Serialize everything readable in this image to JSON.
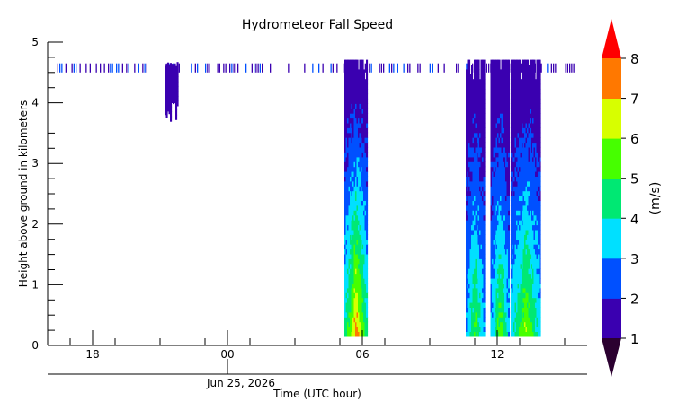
{
  "chart_data": {
    "type": "heatmap",
    "title": "Hydrometeor Fall Speed",
    "ylabel": "Height above ground in kilometers",
    "xlabel": "Time (UTC hour)",
    "date_label": "Jun 25, 2026",
    "ylim": [
      0,
      5
    ],
    "xlim_hours": [
      -8,
      16
    ],
    "y_ticks": [
      "0",
      "1",
      "2",
      "3",
      "4",
      "5"
    ],
    "x_ticks": [
      {
        "hour": -6,
        "label": "18"
      },
      {
        "hour": 0,
        "label": "00"
      },
      {
        "hour": 6,
        "label": "06"
      },
      {
        "hour": 12,
        "label": "12"
      }
    ],
    "colorbar": {
      "label": "(m/s)",
      "ticks": [
        "1",
        "2",
        "3",
        "4",
        "5",
        "6",
        "7",
        "8"
      ],
      "min": 1,
      "max": 8,
      "colors": [
        "#3a00b0",
        "#0050ff",
        "#00e0ff",
        "#00e873",
        "#46ff00",
        "#d7ff00",
        "#ff7800"
      ],
      "under_color": "#2b0030",
      "over_color": "#ff0000"
    },
    "echo_regions": [
      {
        "start_hour": -2.8,
        "end_hour": -2.2,
        "top_km": 4.6,
        "base_km": 3.65,
        "peak_speed": 1.6
      },
      {
        "start_hour": 5.2,
        "end_hour": 6.2,
        "top_km": 4.65,
        "base_km": 0.15,
        "peak_speed": 7.6
      },
      {
        "start_hour": 10.6,
        "end_hour": 11.4,
        "top_km": 4.65,
        "base_km": 0.15,
        "peak_speed": 5.3
      },
      {
        "start_hour": 11.7,
        "end_hour": 12.5,
        "top_km": 4.65,
        "base_km": 0.15,
        "peak_speed": 5.6
      },
      {
        "start_hour": 12.6,
        "end_hour": 13.9,
        "top_km": 4.65,
        "base_km": 0.15,
        "peak_speed": 6.1
      }
    ],
    "upper_band_km": [
      4.5,
      4.65
    ]
  }
}
